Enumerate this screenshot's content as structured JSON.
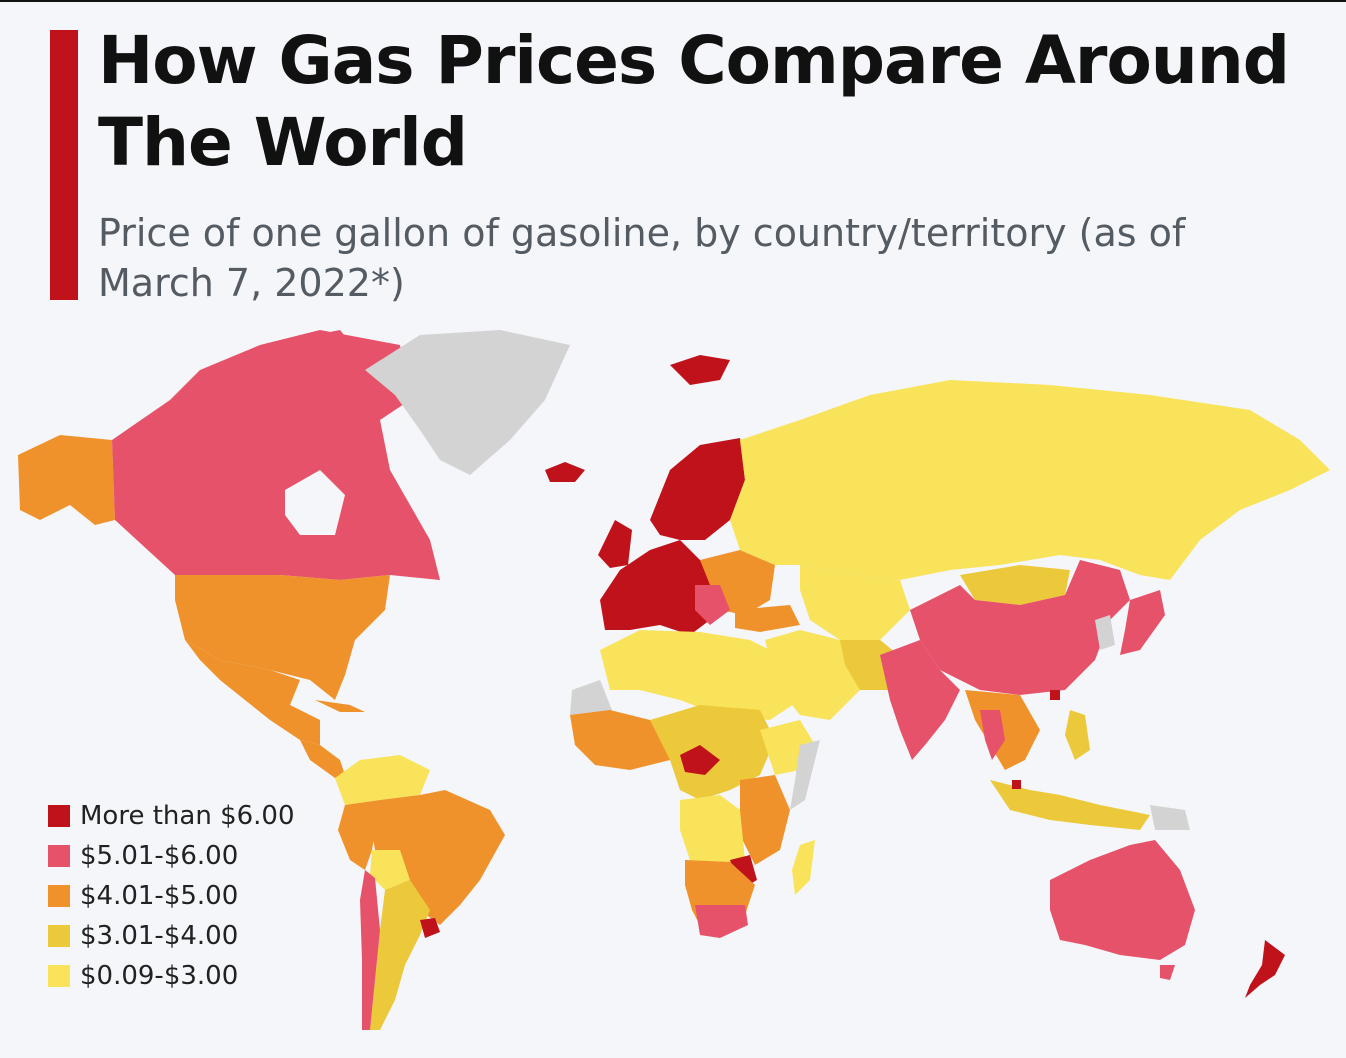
{
  "title": "How Gas Prices Compare Around The World",
  "subtitle": "Price of one gallon of gasoline, by country/territory (as of March 7, 2022*)",
  "colors": {
    "accent": "#c0121a",
    "over_6": "#c0121a",
    "r5_6": "#e5526a",
    "r4_5": "#f0922b",
    "r3_4": "#ecc93a",
    "r0_3": "#f8e35a",
    "no_data": "#d3d3d3"
  },
  "legend": [
    {
      "label": "More than $6.00",
      "color": "#c0121a"
    },
    {
      "label": "$5.01-$6.00",
      "color": "#e5526a"
    },
    {
      "label": "$4.01-$5.00",
      "color": "#f0922b"
    },
    {
      "label": "$3.01-$4.00",
      "color": "#ecc93a"
    },
    {
      "label": "$0.09-$3.00",
      "color": "#f8e35a"
    }
  ]
}
